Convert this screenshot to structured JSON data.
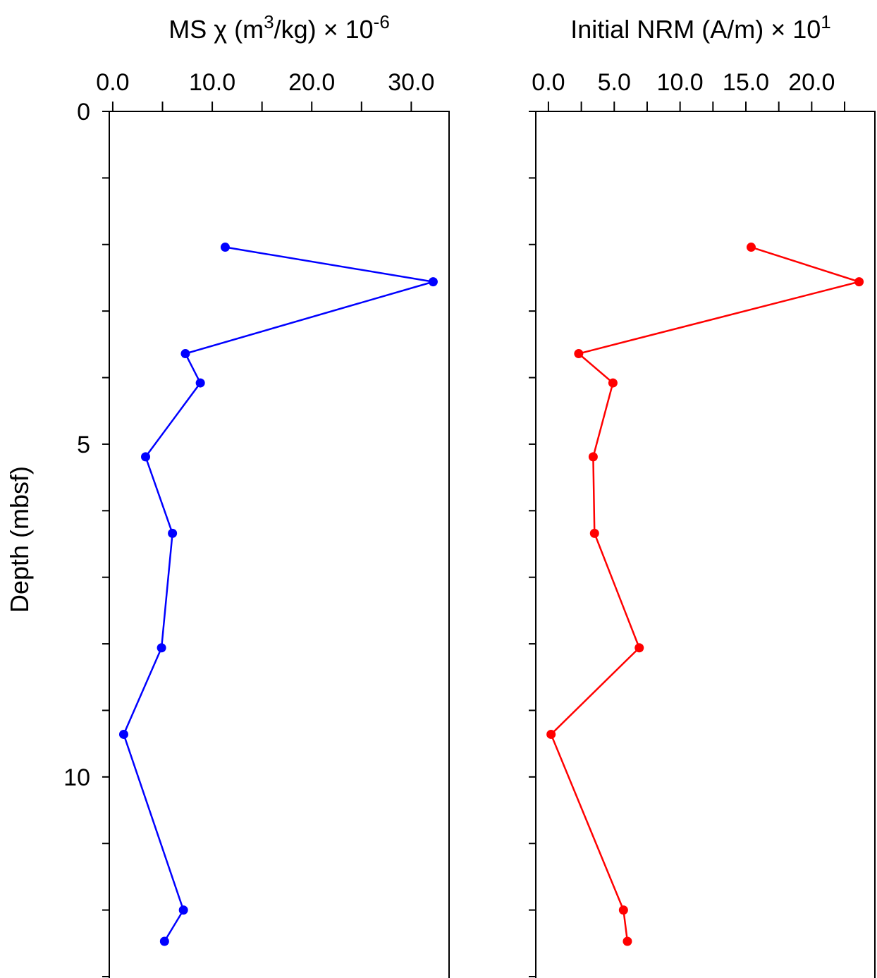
{
  "chart_data": [
    {
      "type": "line",
      "title_parts": {
        "pre": "MS χ (m",
        "sup1": "3",
        "mid": "/kg) × 10",
        "sup2": "-6"
      },
      "xlabel": "MS χ (m3/kg) × 10-6",
      "ylabel": "Depth (mbsf)",
      "xlim": [
        -0.35,
        33.8
      ],
      "ylim": [
        0,
        13
      ],
      "x_ticks": [
        0,
        10,
        20,
        30
      ],
      "x_tick_labels": [
        "0.0",
        "10.0",
        "20.0",
        "30.0"
      ],
      "y_tick_labels": [
        "0",
        "5",
        "10"
      ],
      "color": "#0000ff",
      "series": [
        {
          "name": "MS",
          "x": [
            11.3,
            32.2,
            7.3,
            8.8,
            3.3,
            6.0,
            4.9,
            1.1,
            7.1,
            5.2
          ],
          "depth": [
            2.04,
            2.56,
            3.64,
            4.08,
            5.19,
            6.34,
            8.06,
            9.36,
            12.0,
            12.47
          ]
        }
      ]
    },
    {
      "type": "line",
      "title_parts": {
        "pre": "Initial NRM (A/m) × 10",
        "sup1": "1"
      },
      "xlabel": "Initial NRM (A/m) × 101",
      "xlim": [
        -0.96,
        24.8
      ],
      "ylim": [
        0,
        13
      ],
      "x_ticks": [
        0,
        5,
        10,
        15,
        20
      ],
      "x_tick_labels": [
        "0.0",
        "5.0",
        "10.0",
        "15.0",
        "20.0"
      ],
      "color": "#ff0000",
      "series": [
        {
          "name": "NRM",
          "x": [
            15.4,
            23.6,
            2.3,
            4.9,
            3.4,
            3.5,
            6.9,
            0.2,
            5.7,
            6.0
          ],
          "depth": [
            2.04,
            2.56,
            3.64,
            4.08,
            5.19,
            6.34,
            8.06,
            9.36,
            12.0,
            12.47
          ]
        }
      ]
    }
  ]
}
